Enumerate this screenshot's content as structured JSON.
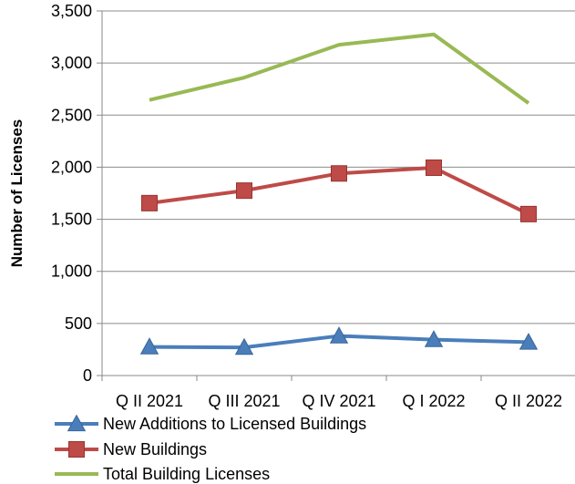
{
  "chart_data": {
    "type": "line",
    "title": "",
    "xlabel": "",
    "ylabel": "Number of Licenses",
    "categories": [
      "Q II 2021",
      "Q III 2021",
      "Q IV 2021",
      "Q I 2022",
      "Q II 2022"
    ],
    "ylim": [
      0,
      3500
    ],
    "yticks": [
      0,
      500,
      1000,
      1500,
      2000,
      2500,
      3000,
      3500
    ],
    "ytick_labels": [
      "0",
      "500",
      "1,000",
      "1,500",
      "2,000",
      "2,500",
      "3,000",
      "3,500"
    ],
    "grid": true,
    "legend_position": "bottom",
    "series": [
      {
        "name": "New Additions to Licensed Buildings",
        "values": [
          275,
          270,
          380,
          345,
          320
        ],
        "color": "#4a7ebb",
        "marker": "triangle"
      },
      {
        "name": "New Buildings",
        "values": [
          1655,
          1775,
          1940,
          1995,
          1550
        ],
        "color": "#be4b48",
        "marker": "square"
      },
      {
        "name": "Total Building Licenses",
        "values": [
          2645,
          2860,
          3175,
          3275,
          2615
        ],
        "color": "#98b954",
        "marker": "none"
      }
    ]
  }
}
